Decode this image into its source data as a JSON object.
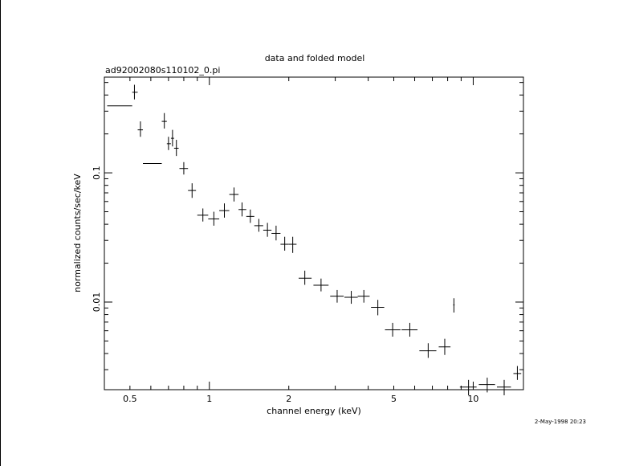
{
  "chart_data": {
    "type": "scatter",
    "title": "data and folded model",
    "subtitle": "ad92002080s110102_0.pi",
    "xlabel": "channel energy (keV)",
    "ylabel": "normalized counts/sec/keV",
    "timestamp": "2-May-1998 20:23",
    "xscale": "log",
    "yscale": "log",
    "xlim": [
      0.4,
      15.5
    ],
    "ylim": [
      0.0021,
      0.55
    ],
    "xticklabels": [
      {
        "value": 0.5,
        "label": "0.5"
      },
      {
        "value": 1,
        "label": "1"
      },
      {
        "value": 2,
        "label": "2"
      },
      {
        "value": 5,
        "label": "5"
      },
      {
        "value": 10,
        "label": "10"
      }
    ],
    "yticklabels": [
      {
        "value": 0.1,
        "label": "0.1"
      },
      {
        "value": 0.01,
        "label": "0.01"
      }
    ],
    "series": [
      {
        "points": [
          {
            "x": 0.458,
            "xlo": 0.41,
            "xhi": 0.51,
            "y": 0.33,
            "ylo": 0.33,
            "yhi": 0.33
          },
          {
            "x": 0.52,
            "xlo": 0.51,
            "xhi": 0.535,
            "y": 0.42,
            "ylo": 0.37,
            "yhi": 0.48
          },
          {
            "x": 0.548,
            "xlo": 0.535,
            "xhi": 0.56,
            "y": 0.215,
            "ylo": 0.19,
            "yhi": 0.25
          },
          {
            "x": 0.61,
            "xlo": 0.56,
            "xhi": 0.66,
            "y": 0.118,
            "ylo": 0.118,
            "yhi": 0.118
          },
          {
            "x": 0.675,
            "xlo": 0.66,
            "xhi": 0.69,
            "y": 0.25,
            "ylo": 0.22,
            "yhi": 0.29
          },
          {
            "x": 0.7,
            "xlo": 0.69,
            "xhi": 0.715,
            "y": 0.168,
            "ylo": 0.15,
            "yhi": 0.19
          },
          {
            "x": 0.725,
            "xlo": 0.715,
            "xhi": 0.735,
            "y": 0.185,
            "ylo": 0.16,
            "yhi": 0.215
          },
          {
            "x": 0.75,
            "xlo": 0.735,
            "xhi": 0.765,
            "y": 0.155,
            "ylo": 0.135,
            "yhi": 0.18
          },
          {
            "x": 0.8,
            "xlo": 0.77,
            "xhi": 0.83,
            "y": 0.108,
            "ylo": 0.097,
            "yhi": 0.121
          },
          {
            "x": 0.86,
            "xlo": 0.83,
            "xhi": 0.89,
            "y": 0.073,
            "ylo": 0.064,
            "yhi": 0.083
          },
          {
            "x": 0.945,
            "xlo": 0.9,
            "xhi": 0.99,
            "y": 0.047,
            "ylo": 0.042,
            "yhi": 0.053
          },
          {
            "x": 1.04,
            "xlo": 0.99,
            "xhi": 1.09,
            "y": 0.044,
            "ylo": 0.039,
            "yhi": 0.05
          },
          {
            "x": 1.14,
            "xlo": 1.09,
            "xhi": 1.19,
            "y": 0.051,
            "ylo": 0.045,
            "yhi": 0.058
          },
          {
            "x": 1.24,
            "xlo": 1.19,
            "xhi": 1.29,
            "y": 0.068,
            "ylo": 0.06,
            "yhi": 0.077
          },
          {
            "x": 1.33,
            "xlo": 1.29,
            "xhi": 1.38,
            "y": 0.052,
            "ylo": 0.046,
            "yhi": 0.059
          },
          {
            "x": 1.43,
            "xlo": 1.38,
            "xhi": 1.48,
            "y": 0.046,
            "ylo": 0.041,
            "yhi": 0.052
          },
          {
            "x": 1.54,
            "xlo": 1.48,
            "xhi": 1.6,
            "y": 0.039,
            "ylo": 0.035,
            "yhi": 0.044
          },
          {
            "x": 1.66,
            "xlo": 1.6,
            "xhi": 1.72,
            "y": 0.036,
            "ylo": 0.032,
            "yhi": 0.041
          },
          {
            "x": 1.79,
            "xlo": 1.72,
            "xhi": 1.86,
            "y": 0.034,
            "ylo": 0.03,
            "yhi": 0.039
          },
          {
            "x": 1.93,
            "xlo": 1.86,
            "xhi": 2.0,
            "y": 0.028,
            "ylo": 0.025,
            "yhi": 0.032
          },
          {
            "x": 2.07,
            "xlo": 2.0,
            "xhi": 2.14,
            "y": 0.028,
            "ylo": 0.024,
            "yhi": 0.032
          },
          {
            "x": 2.3,
            "xlo": 2.18,
            "xhi": 2.44,
            "y": 0.0153,
            "ylo": 0.0136,
            "yhi": 0.0175
          },
          {
            "x": 2.65,
            "xlo": 2.48,
            "xhi": 2.83,
            "y": 0.0135,
            "ylo": 0.0121,
            "yhi": 0.0152
          },
          {
            "x": 3.05,
            "xlo": 2.87,
            "xhi": 3.23,
            "y": 0.0111,
            "ylo": 0.0099,
            "yhi": 0.0124
          },
          {
            "x": 3.45,
            "xlo": 3.25,
            "xhi": 3.65,
            "y": 0.0109,
            "ylo": 0.0097,
            "yhi": 0.0122
          },
          {
            "x": 3.85,
            "xlo": 3.65,
            "xhi": 4.05,
            "y": 0.0111,
            "ylo": 0.0099,
            "yhi": 0.0124
          },
          {
            "x": 4.35,
            "xlo": 4.1,
            "xhi": 4.6,
            "y": 0.0091,
            "ylo": 0.0079,
            "yhi": 0.0104
          },
          {
            "x": 4.95,
            "xlo": 4.63,
            "xhi": 5.3,
            "y": 0.0061,
            "ylo": 0.0054,
            "yhi": 0.0069
          },
          {
            "x": 5.75,
            "xlo": 5.35,
            "xhi": 6.15,
            "y": 0.0061,
            "ylo": 0.0054,
            "yhi": 0.0069
          },
          {
            "x": 6.75,
            "xlo": 6.25,
            "xhi": 7.25,
            "y": 0.0042,
            "ylo": 0.0037,
            "yhi": 0.0048
          },
          {
            "x": 7.8,
            "xlo": 7.4,
            "xhi": 8.2,
            "y": 0.0045,
            "ylo": 0.0039,
            "yhi": 0.0052
          },
          {
            "x": 8.45,
            "xlo": 8.4,
            "xhi": 8.5,
            "y": 0.0095,
            "ylo": 0.0083,
            "yhi": 0.0107
          },
          {
            "x": 9.6,
            "xlo": 8.9,
            "xhi": 10.3,
            "y": 0.0022,
            "ylo": 0.0019,
            "yhi": 0.0025
          },
          {
            "x": 11.3,
            "xlo": 10.5,
            "xhi": 12.1,
            "y": 0.0023,
            "ylo": 0.002,
            "yhi": 0.0026
          },
          {
            "x": 13.1,
            "xlo": 12.3,
            "xhi": 13.9,
            "y": 0.0022,
            "ylo": 0.0019,
            "yhi": 0.0025
          },
          {
            "x": 14.7,
            "xlo": 14.2,
            "xhi": 15.2,
            "y": 0.0028,
            "ylo": 0.0025,
            "yhi": 0.0032
          }
        ]
      }
    ]
  }
}
